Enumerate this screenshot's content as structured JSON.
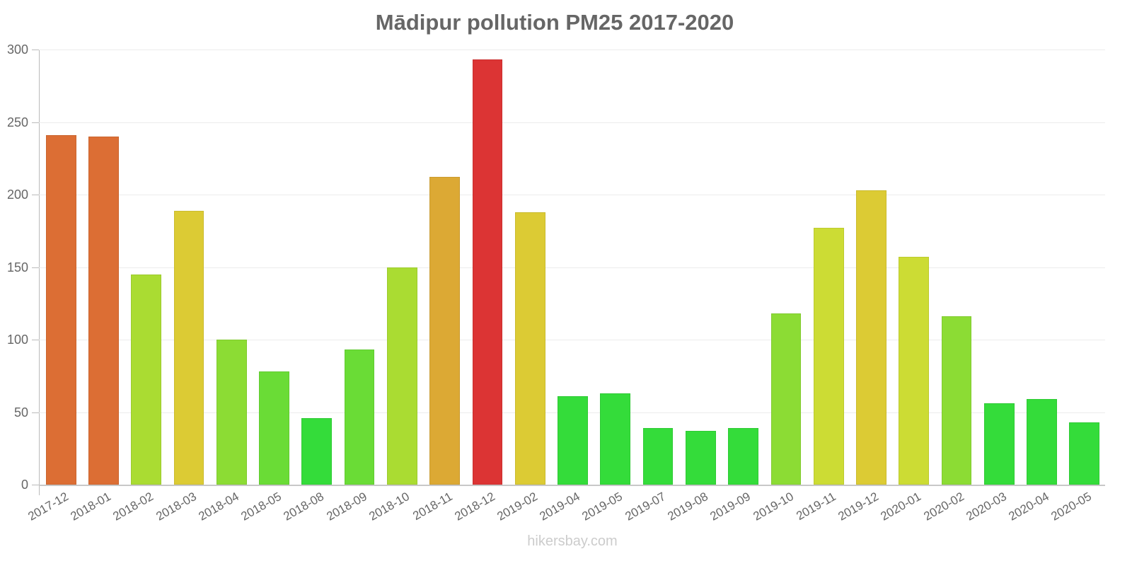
{
  "header": {
    "title": "Mādipur pollution PM25 2017-2020"
  },
  "footer": {
    "watermark": "hikersbay.com"
  },
  "chart_data": {
    "type": "bar",
    "title": "Mādipur pollution PM25 2017-2020",
    "xlabel": "",
    "ylabel": "",
    "ylim": [
      0,
      300
    ],
    "yticks": [
      0,
      50,
      100,
      150,
      200,
      250,
      300
    ],
    "grid": true,
    "legend": null,
    "categories": [
      "2017-12",
      "2018-01",
      "2018-02",
      "2018-03",
      "2018-04",
      "2018-05",
      "2018-08",
      "2018-09",
      "2018-10",
      "2018-11",
      "2018-12",
      "2019-02",
      "2019-04",
      "2019-05",
      "2019-07",
      "2019-08",
      "2019-09",
      "2019-10",
      "2019-11",
      "2019-12",
      "2020-01",
      "2020-02",
      "2020-03",
      "2020-04",
      "2020-05"
    ],
    "values": [
      241,
      240,
      145,
      189,
      100,
      78,
      46,
      93,
      150,
      212,
      293,
      188,
      61,
      63,
      39,
      37,
      39,
      118,
      177,
      203,
      157,
      116,
      56,
      59,
      43
    ],
    "colors": [
      "#dc6e34",
      "#dc6e34",
      "#aadc32",
      "#dccb34",
      "#8cdc34",
      "#6adc36",
      "#34dc3a",
      "#6adc36",
      "#aadc32",
      "#dca934",
      "#dc3434",
      "#dccb34",
      "#34dc3a",
      "#34dc3a",
      "#34dc3a",
      "#34dc3a",
      "#34dc3a",
      "#8cdc34",
      "#ccdc34",
      "#dccb34",
      "#ccdc34",
      "#8cdc34",
      "#34dc3a",
      "#34dc3a",
      "#34dc3a"
    ]
  }
}
